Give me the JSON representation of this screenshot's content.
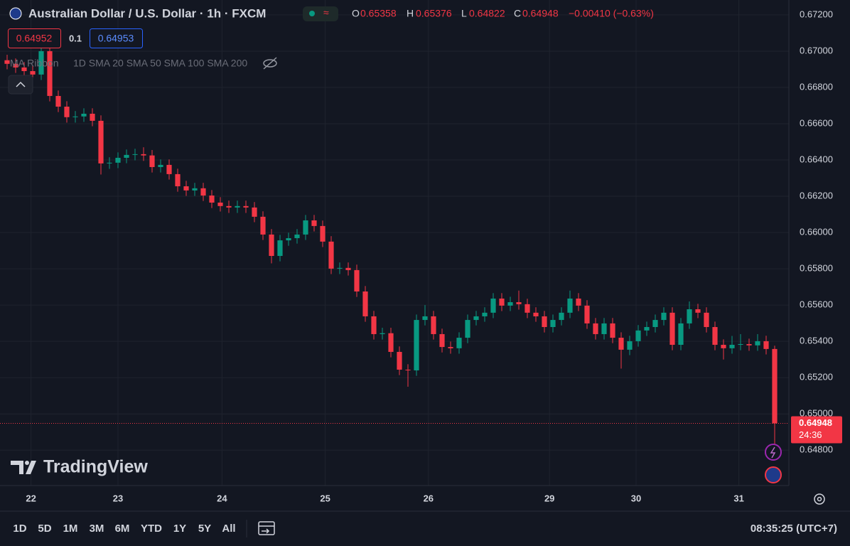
{
  "header": {
    "title": "Australian Dollar / U.S. Dollar · 1h · FXCM",
    "o_letter": "O",
    "h_letter": "H",
    "l_letter": "L",
    "c_letter": "C",
    "change": "−0.00410 (−0.63%)"
  },
  "trade": {
    "sell": "0.64952",
    "size": "0.1",
    "buy": "0.64953"
  },
  "indicator": {
    "name": "MA Ribbon",
    "params": "1D SMA 20 SMA 50 SMA 100 SMA 200"
  },
  "logo": "TradingView",
  "countdown": "24:36",
  "toolbar": {
    "ranges": [
      "1D",
      "5D",
      "1M",
      "3M",
      "6M",
      "YTD",
      "1Y",
      "5Y",
      "All"
    ],
    "clock": "08:35:25 (UTC+7)"
  },
  "chart_data": {
    "type": "candlestick",
    "up_color": "#089981",
    "down_color": "#f23645",
    "grid": true,
    "ylim": [
      0.64605,
      0.67282
    ],
    "yticks": [
      {
        "value": 0.672,
        "label": "0.67200"
      },
      {
        "value": 0.67,
        "label": "0.67000"
      },
      {
        "value": 0.668,
        "label": "0.66800"
      },
      {
        "value": 0.666,
        "label": "0.66600"
      },
      {
        "value": 0.664,
        "label": "0.66400"
      },
      {
        "value": 0.662,
        "label": "0.66200"
      },
      {
        "value": 0.66,
        "label": "0.66000"
      },
      {
        "value": 0.658,
        "label": "0.65800"
      },
      {
        "value": 0.656,
        "label": "0.65600"
      },
      {
        "value": 0.654,
        "label": "0.65400"
      },
      {
        "value": 0.652,
        "label": "0.65200"
      },
      {
        "value": 0.65,
        "label": "0.65000"
      },
      {
        "value": 0.648,
        "label": "0.64800"
      }
    ],
    "xlim": [
      -0.8333,
      91.6667
    ],
    "xticks": [
      {
        "value": 2.8,
        "label": "22"
      },
      {
        "value": 13,
        "label": "23"
      },
      {
        "value": 25.2,
        "label": "24"
      },
      {
        "value": 37.3,
        "label": "25"
      },
      {
        "value": 49.4,
        "label": "26"
      },
      {
        "value": 63.6,
        "label": "29"
      },
      {
        "value": 73.75,
        "label": "30"
      },
      {
        "value": 85.8,
        "label": "31"
      }
    ],
    "ohlc": [
      [
        0.6695,
        0.6698,
        0.669,
        0.6693
      ],
      [
        0.6693,
        0.6696,
        0.6688,
        0.6691
      ],
      [
        0.6691,
        0.6694,
        0.6686,
        0.6689
      ],
      [
        0.6689,
        0.6692,
        0.66841,
        0.66871
      ],
      [
        0.66871,
        0.6706,
        0.66841,
        0.67
      ],
      [
        0.67,
        0.6703,
        0.66723,
        0.66753
      ],
      [
        0.66753,
        0.66783,
        0.66664,
        0.66694
      ],
      [
        0.66694,
        0.66724,
        0.66606,
        0.66636
      ],
      [
        0.66636,
        0.6667,
        0.66606,
        0.6664
      ],
      [
        0.6664,
        0.66685,
        0.6661,
        0.66655
      ],
      [
        0.66655,
        0.66685,
        0.66586,
        0.66616
      ],
      [
        0.66616,
        0.66646,
        0.6632,
        0.66381
      ],
      [
        0.66381,
        0.66415,
        0.66351,
        0.66385
      ],
      [
        0.66385,
        0.66442,
        0.66355,
        0.66412
      ],
      [
        0.66412,
        0.66458,
        0.66382,
        0.66428
      ],
      [
        0.66428,
        0.66462,
        0.66398,
        0.66432
      ],
      [
        0.66432,
        0.6647,
        0.66395,
        0.66425
      ],
      [
        0.66425,
        0.66455,
        0.66331,
        0.66361
      ],
      [
        0.66361,
        0.66403,
        0.66331,
        0.66373
      ],
      [
        0.66373,
        0.66403,
        0.66292,
        0.66322
      ],
      [
        0.66322,
        0.66352,
        0.66225,
        0.66255
      ],
      [
        0.66255,
        0.66285,
        0.66202,
        0.66232
      ],
      [
        0.66232,
        0.66274,
        0.66202,
        0.66244
      ],
      [
        0.66244,
        0.66274,
        0.66174,
        0.66204
      ],
      [
        0.66204,
        0.66234,
        0.66135,
        0.66165
      ],
      [
        0.66165,
        0.66195,
        0.66116,
        0.66146
      ],
      [
        0.66146,
        0.66176,
        0.66108,
        0.66138
      ],
      [
        0.66138,
        0.66176,
        0.66108,
        0.66146
      ],
      [
        0.66146,
        0.66176,
        0.66108,
        0.66138
      ],
      [
        0.66138,
        0.66168,
        0.66057,
        0.66087
      ],
      [
        0.66087,
        0.66117,
        0.65959,
        0.65989
      ],
      [
        0.65989,
        0.66019,
        0.6583,
        0.65871
      ],
      [
        0.65871,
        0.65987,
        0.65841,
        0.65957
      ],
      [
        0.65957,
        0.65999,
        0.65927,
        0.65969
      ],
      [
        0.65969,
        0.66019,
        0.65939,
        0.65989
      ],
      [
        0.65989,
        0.66097,
        0.65959,
        0.66067
      ],
      [
        0.66067,
        0.66097,
        0.66006,
        0.66036
      ],
      [
        0.66036,
        0.66066,
        0.6592,
        0.6595
      ],
      [
        0.6595,
        0.6598,
        0.65771,
        0.65801
      ],
      [
        0.65801,
        0.65835,
        0.65771,
        0.65805
      ],
      [
        0.65805,
        0.65835,
        0.65763,
        0.65793
      ],
      [
        0.65793,
        0.65823,
        0.65645,
        0.65675
      ],
      [
        0.65675,
        0.65705,
        0.65508,
        0.65538
      ],
      [
        0.65538,
        0.65568,
        0.6541,
        0.6544
      ],
      [
        0.6544,
        0.65475,
        0.6541,
        0.65445
      ],
      [
        0.65445,
        0.65475,
        0.65312,
        0.65342
      ],
      [
        0.65342,
        0.65372,
        0.65214,
        0.65244
      ],
      [
        0.65244,
        0.65274,
        0.6515,
        0.6524
      ],
      [
        0.6524,
        0.65548,
        0.6521,
        0.65518
      ],
      [
        0.65518,
        0.656,
        0.65488,
        0.65538
      ],
      [
        0.65538,
        0.65568,
        0.6541,
        0.6544
      ],
      [
        0.6544,
        0.6547,
        0.65339,
        0.65369
      ],
      [
        0.65369,
        0.65399,
        0.65332,
        0.65362
      ],
      [
        0.65362,
        0.6545,
        0.65332,
        0.6542
      ],
      [
        0.6542,
        0.65548,
        0.6539,
        0.65518
      ],
      [
        0.65518,
        0.65568,
        0.65488,
        0.65538
      ],
      [
        0.65538,
        0.65588,
        0.65508,
        0.65558
      ],
      [
        0.65558,
        0.65666,
        0.65528,
        0.65636
      ],
      [
        0.65636,
        0.65666,
        0.65567,
        0.65597
      ],
      [
        0.65597,
        0.65646,
        0.65567,
        0.65616
      ],
      [
        0.65616,
        0.6568,
        0.65575,
        0.65605
      ],
      [
        0.65605,
        0.65635,
        0.65528,
        0.65558
      ],
      [
        0.65558,
        0.65588,
        0.65508,
        0.65538
      ],
      [
        0.65538,
        0.65568,
        0.65449,
        0.65479
      ],
      [
        0.65479,
        0.65548,
        0.65449,
        0.65518
      ],
      [
        0.65518,
        0.65588,
        0.65488,
        0.65558
      ],
      [
        0.65558,
        0.6568,
        0.65528,
        0.65636
      ],
      [
        0.65636,
        0.65666,
        0.65567,
        0.65597
      ],
      [
        0.65597,
        0.65627,
        0.65469,
        0.65499
      ],
      [
        0.65499,
        0.65529,
        0.6541,
        0.6544
      ],
      [
        0.6544,
        0.65529,
        0.6541,
        0.65499
      ],
      [
        0.65499,
        0.65529,
        0.6539,
        0.6542
      ],
      [
        0.6542,
        0.6545,
        0.6525,
        0.65354
      ],
      [
        0.65354,
        0.65431,
        0.65324,
        0.65401
      ],
      [
        0.65401,
        0.6549,
        0.65371,
        0.6546
      ],
      [
        0.6546,
        0.65509,
        0.6543,
        0.65479
      ],
      [
        0.65479,
        0.65548,
        0.65449,
        0.65518
      ],
      [
        0.65518,
        0.65588,
        0.65488,
        0.65558
      ],
      [
        0.65558,
        0.65588,
        0.65351,
        0.65381
      ],
      [
        0.65381,
        0.65529,
        0.65351,
        0.65499
      ],
      [
        0.65499,
        0.6562,
        0.65469,
        0.65577
      ],
      [
        0.65577,
        0.65607,
        0.65528,
        0.65558
      ],
      [
        0.65558,
        0.65588,
        0.65449,
        0.65479
      ],
      [
        0.65479,
        0.65509,
        0.65351,
        0.65381
      ],
      [
        0.65381,
        0.65411,
        0.653,
        0.65362
      ],
      [
        0.65362,
        0.6543,
        0.65332,
        0.65381
      ],
      [
        0.65381,
        0.6544,
        0.65351,
        0.65385
      ],
      [
        0.65385,
        0.65415,
        0.65348,
        0.65378
      ],
      [
        0.65378,
        0.6544,
        0.65348,
        0.65401
      ],
      [
        0.65401,
        0.65431,
        0.65328,
        0.65358
      ],
      [
        0.65358,
        0.65376,
        0.64822,
        0.64948
      ]
    ]
  }
}
